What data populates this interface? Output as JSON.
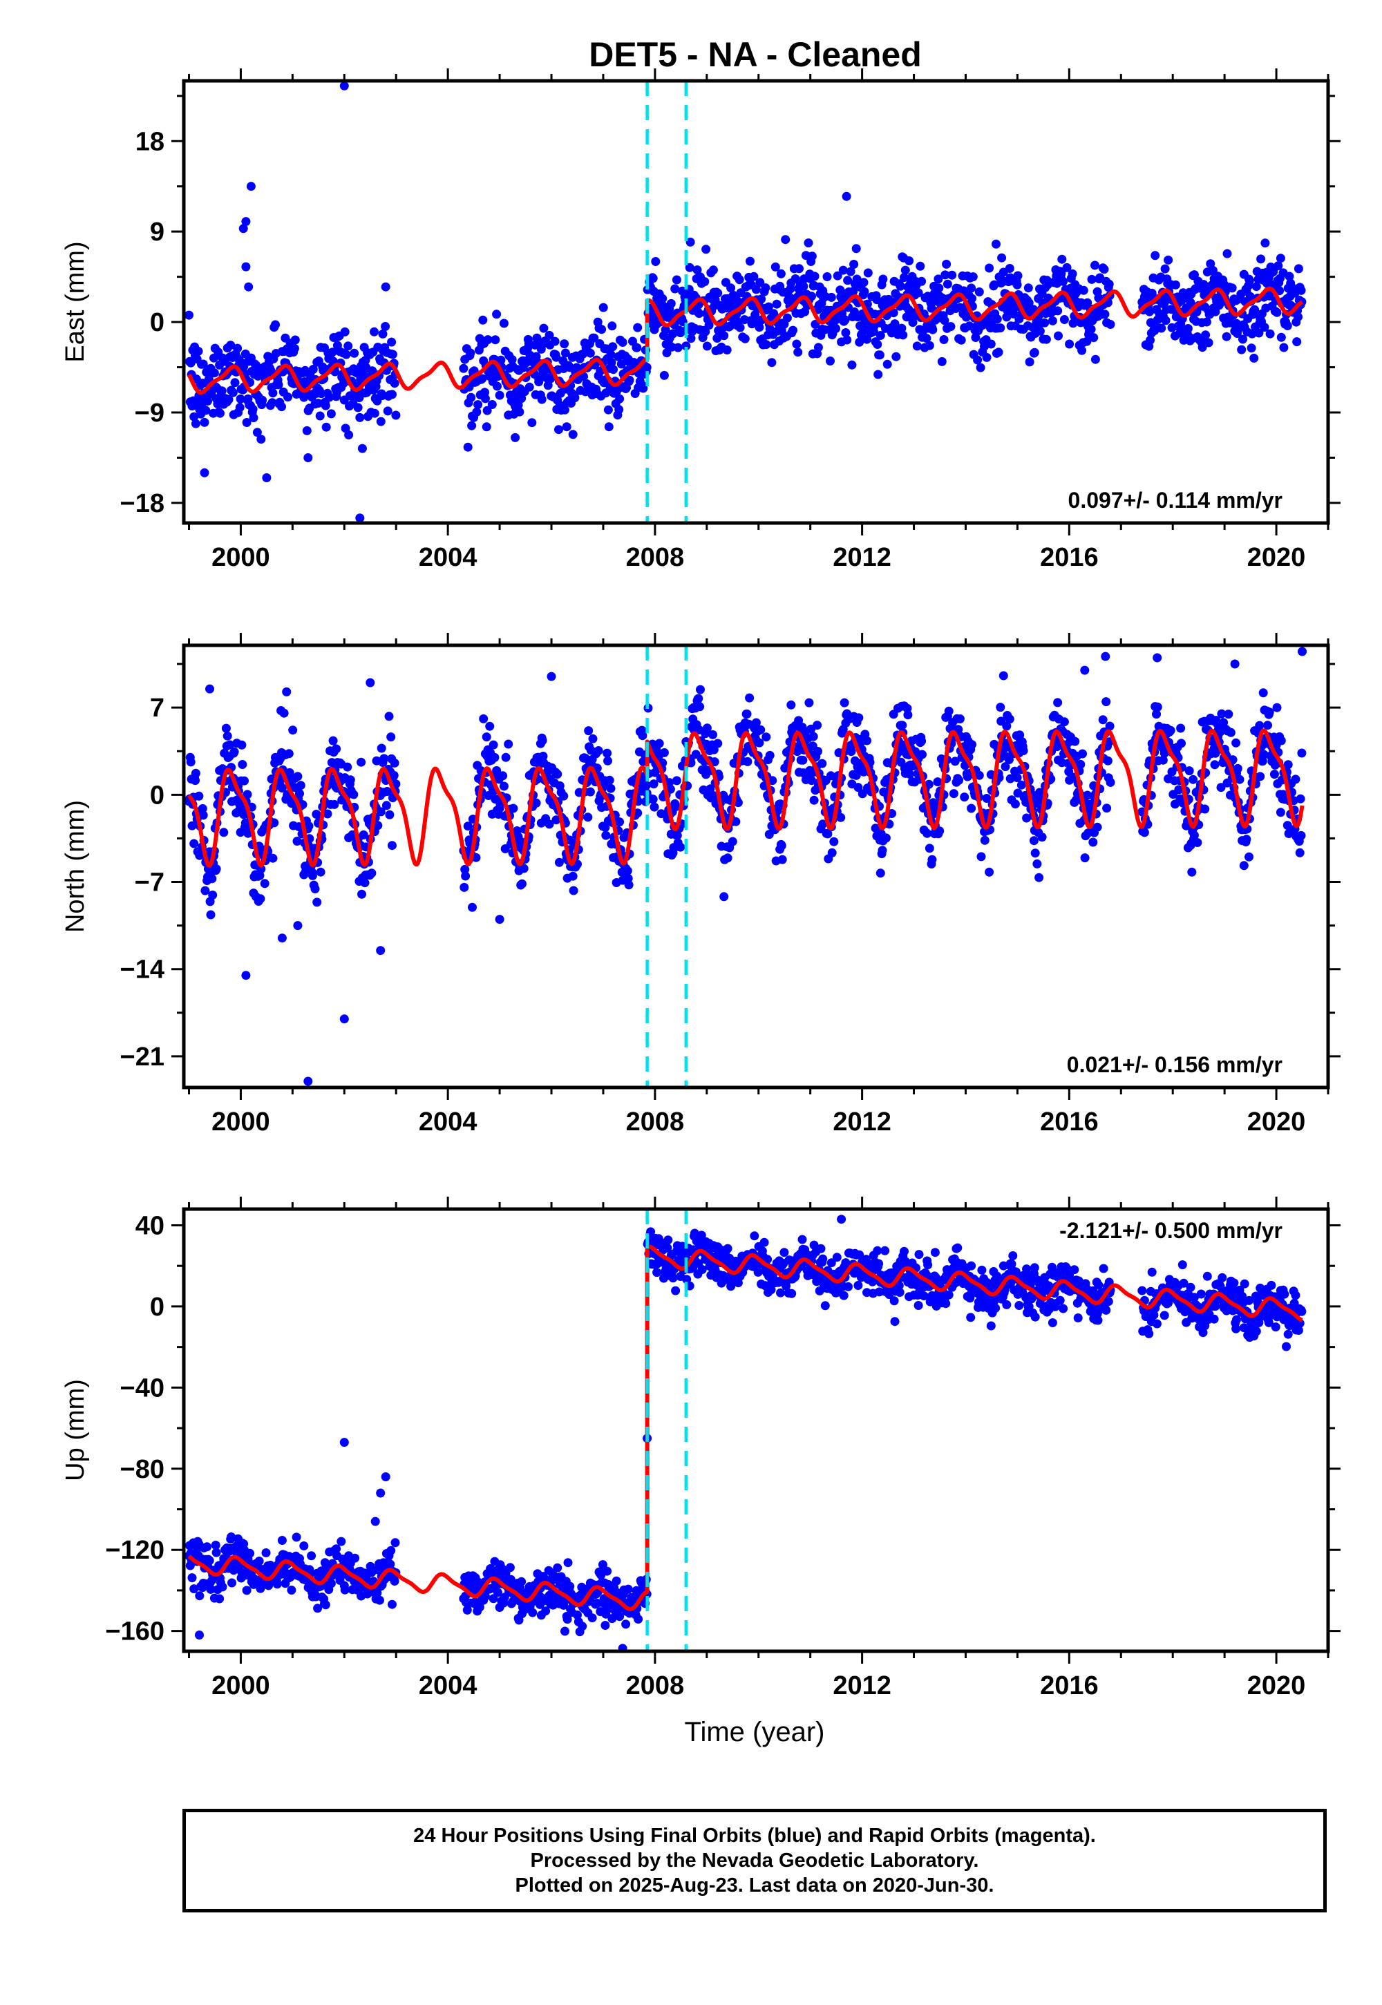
{
  "chart_data": [
    {
      "panel": "east",
      "type": "scatter",
      "title": "DET5  - NA - Cleaned",
      "xlabel": "",
      "ylabel": "East (mm)",
      "xlim": [
        1998.9,
        2021.0
      ],
      "ylim": [
        -20,
        24
      ],
      "xticks": [
        2000,
        2004,
        2008,
        2012,
        2016,
        2020
      ],
      "yticks": [
        -18,
        -9,
        0,
        9,
        18
      ],
      "yticklabels": [
        "−18",
        "−9",
        "0",
        "9",
        "18"
      ],
      "velocity_label": "0.097+/- 0.114 mm/yr",
      "velocity_position": "bottom-right",
      "offsets": [
        2007.85,
        2008.6
      ],
      "model": {
        "segments": [
          {
            "t0": 1999.0,
            "t1": 2007.85,
            "trend_at_2004": -5.3,
            "rate": 0.097,
            "annual_amp": 1.1,
            "annual_phase": 0.55,
            "semi_amp": 0.35,
            "semi_phase": 0.3
          },
          {
            "t0": 2007.85,
            "t1": 2020.5,
            "trend_at_2012": 1.3,
            "rate": 0.097,
            "annual_amp": 1.1,
            "annual_phase": 0.55,
            "semi_amp": 0.35,
            "semi_phase": 0.3
          }
        ]
      },
      "series": [
        {
          "name": "Final Orbits",
          "color": "#0000ff",
          "gaps": [
            [
              2003.0,
              2004.3
            ],
            [
              2016.8,
              2017.4
            ]
          ],
          "scatter_sd": 2.1,
          "outliers": [
            [
              2002.0,
              23.5
            ],
            [
              2000.2,
              13.5
            ],
            [
              2000.1,
              10.0
            ],
            [
              2000.05,
              9.3
            ],
            [
              2000.1,
              5.5
            ],
            [
              2000.15,
              3.5
            ],
            [
              2011.7,
              12.5
            ],
            [
              2002.3,
              -19.5
            ],
            [
              2000.5,
              -15.5
            ],
            [
              1999.3,
              -15.0
            ],
            [
              2001.3,
              -13.5
            ],
            [
              2004.5,
              -9.5
            ],
            [
              2005.3,
              -11.5
            ],
            [
              2002.8,
              3.5
            ]
          ]
        }
      ],
      "model_color": "#ff0000",
      "offset_color": "#00e0f0"
    },
    {
      "panel": "north",
      "type": "scatter",
      "title": "",
      "xlabel": "",
      "ylabel": "North (mm)",
      "xlim": [
        1998.9,
        2021.0
      ],
      "ylim": [
        -23.5,
        12
      ],
      "xticks": [
        2000,
        2004,
        2008,
        2012,
        2016,
        2020
      ],
      "yticks": [
        -21,
        -14,
        -7,
        0,
        7
      ],
      "yticklabels": [
        "−21",
        "−14",
        "−7",
        "0",
        "7"
      ],
      "velocity_label": "0.021+/- 0.156 mm/yr",
      "velocity_position": "bottom-right",
      "offsets": [
        2007.85,
        2008.6
      ],
      "model": {
        "segments": [
          {
            "t0": 1999.0,
            "t1": 2007.85,
            "trend_at_2004": -1.3,
            "rate": 0.021,
            "annual_amp": 3.4,
            "annual_phase": 0.6,
            "semi_amp": 1.1,
            "semi_phase": 0.55
          },
          {
            "t0": 2007.85,
            "t1": 2020.5,
            "trend_at_2012": 1.6,
            "rate": 0.021,
            "annual_amp": 3.4,
            "annual_phase": 0.6,
            "semi_amp": 1.1,
            "semi_phase": 0.55
          }
        ]
      },
      "series": [
        {
          "name": "Final Orbits",
          "color": "#0000ff",
          "gaps": [
            [
              2003.0,
              2004.3
            ],
            [
              2016.8,
              2017.4
            ]
          ],
          "scatter_sd": 1.7,
          "outliers": [
            [
              2001.3,
              -23.0
            ],
            [
              2002.0,
              -18.0
            ],
            [
              2000.1,
              -14.5
            ],
            [
              2000.8,
              -11.5
            ],
            [
              2001.1,
              -10.5
            ],
            [
              2002.7,
              -12.5
            ],
            [
              2005.0,
              -10.0
            ],
            [
              2006.0,
              9.5
            ],
            [
              2016.3,
              10.0
            ],
            [
              2017.7,
              11.0
            ],
            [
              2019.2,
              10.5
            ],
            [
              2020.5,
              11.5
            ],
            [
              1999.4,
              8.5
            ],
            [
              2002.5,
              9.0
            ]
          ]
        }
      ],
      "model_color": "#ff0000",
      "offset_color": "#00e0f0"
    },
    {
      "panel": "up",
      "type": "scatter",
      "title": "",
      "xlabel": "Time (year)",
      "ylabel": "Up (mm)",
      "xlim": [
        1998.9,
        2021.0
      ],
      "ylim": [
        -170,
        48
      ],
      "xticks": [
        2000,
        2004,
        2008,
        2012,
        2016,
        2020
      ],
      "yticks": [
        -160,
        -120,
        -80,
        -40,
        0,
        40
      ],
      "yticklabels": [
        "−160",
        "−120",
        "−80",
        "−40",
        "0",
        "40"
      ],
      "velocity_label": "-2.121+/- 0.500 mm/yr",
      "velocity_position": "top-right",
      "offsets": [
        2007.85,
        2008.6
      ],
      "model": {
        "segments": [
          {
            "t0": 1999.0,
            "t1": 2007.85,
            "trend_at_2004": -137.0,
            "rate": -2.121,
            "annual_amp": 4.2,
            "annual_phase": 0.7,
            "semi_amp": 1.2,
            "semi_phase": 0.2
          },
          {
            "t0": 2007.85,
            "t1": 2020.5,
            "trend_at_2012": 16.0,
            "rate": -2.121,
            "annual_amp": 4.2,
            "annual_phase": 0.7,
            "semi_amp": 1.2,
            "semi_phase": 0.2
          }
        ]
      },
      "series": [
        {
          "name": "Final Orbits",
          "color": "#0000ff",
          "gaps": [
            [
              2003.0,
              2004.3
            ],
            [
              2016.8,
              2017.4
            ]
          ],
          "scatter_sd": 5.5,
          "outliers": [
            [
              2002.0,
              -67.0
            ],
            [
              2002.8,
              -84.0
            ],
            [
              2002.7,
              -92.0
            ],
            [
              2007.85,
              -65.0
            ],
            [
              1999.2,
              -162.0
            ],
            [
              2011.6,
              43.0
            ],
            [
              2002.6,
              -106.0
            ]
          ]
        }
      ],
      "model_color": "#ff0000",
      "offset_color": "#00e0f0"
    }
  ],
  "footer": {
    "line1": "24 Hour Positions Using Final Orbits (blue) and Rapid Orbits (magenta).",
    "line2": "Processed by the Nevada Geodetic Laboratory.",
    "line3": "Plotted on 2025-Aug-23. Last data on 2020-Jun-30."
  }
}
